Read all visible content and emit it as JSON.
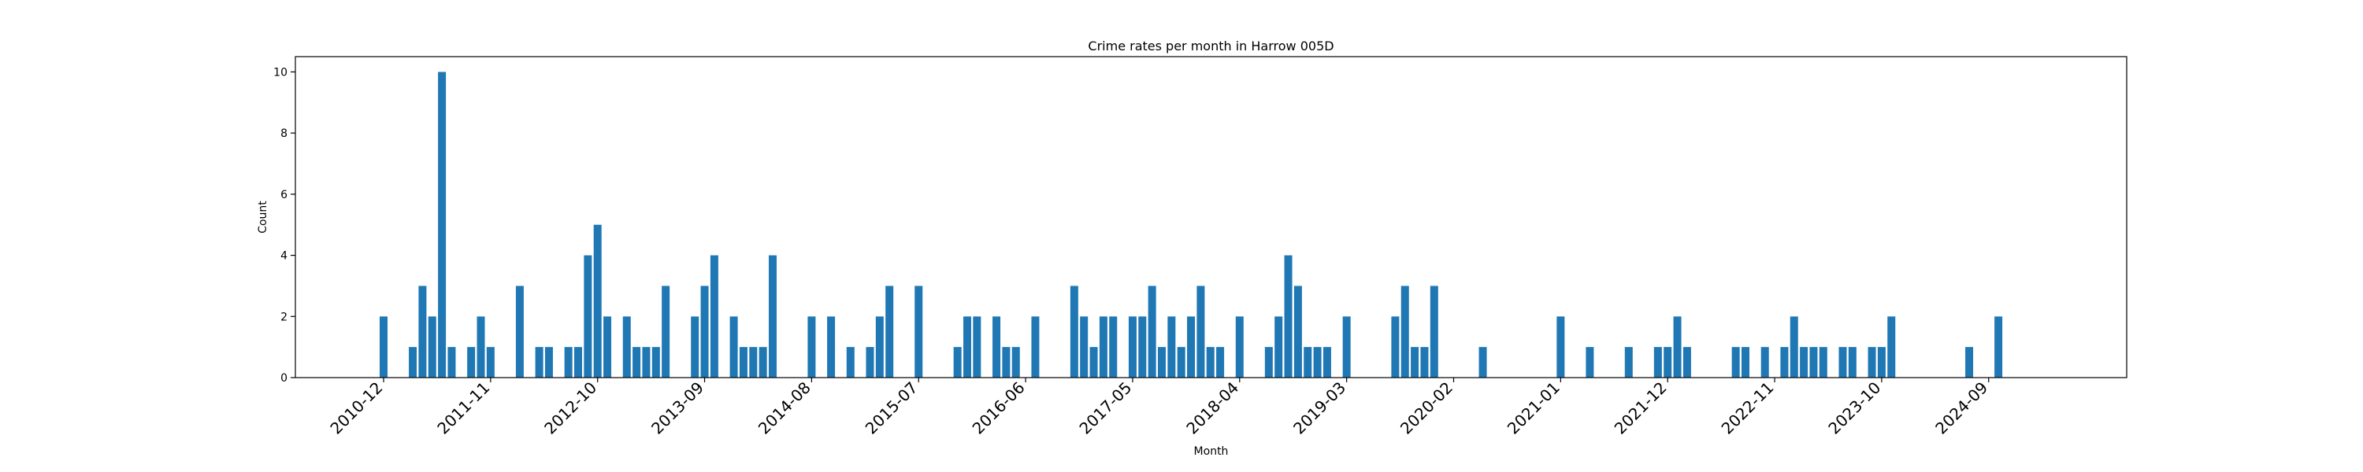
{
  "chart_data": {
    "type": "bar",
    "title": "Crime rates per month in Harrow 005D",
    "xlabel": "Month",
    "ylabel": "Count",
    "ylim": [
      0,
      10.5
    ],
    "y_ticks": [
      0,
      2,
      4,
      6,
      8,
      10
    ],
    "x_ticks": [
      "2010-12",
      "2011-11",
      "2012-10",
      "2013-09",
      "2014-08",
      "2015-07",
      "2016-06",
      "2017-05",
      "2018-04",
      "2019-03",
      "2020-02",
      "2021-01",
      "2021-12",
      "2022-11",
      "2023-10",
      "2024-09"
    ],
    "grid": false,
    "bar_color": "#1f77b4",
    "series": [
      {
        "x": [
          "2010-12",
          "2011-03",
          "2011-04",
          "2011-05",
          "2011-06",
          "2011-07",
          "2011-09",
          "2011-10",
          "2011-11",
          "2012-02",
          "2012-04",
          "2012-05",
          "2012-07",
          "2012-08",
          "2012-09",
          "2012-10",
          "2012-11",
          "2013-01",
          "2013-02",
          "2013-03",
          "2013-04",
          "2013-05",
          "2013-08",
          "2013-09",
          "2013-10",
          "2013-12",
          "2014-01",
          "2014-02",
          "2014-03",
          "2014-04",
          "2014-08",
          "2014-10",
          "2014-12",
          "2015-02",
          "2015-03",
          "2015-04",
          "2015-07",
          "2015-11",
          "2015-12",
          "2016-01",
          "2016-03",
          "2016-04",
          "2016-05",
          "2016-07",
          "2016-11",
          "2016-12",
          "2017-01",
          "2017-02",
          "2017-03",
          "2017-05",
          "2017-06",
          "2017-07",
          "2017-08",
          "2017-09",
          "2017-10",
          "2017-11",
          "2017-12",
          "2018-01",
          "2018-02",
          "2018-04",
          "2018-07",
          "2018-08",
          "2018-09",
          "2018-10",
          "2018-11",
          "2018-12",
          "2019-01",
          "2019-03",
          "2019-08",
          "2019-09",
          "2019-10",
          "2019-11",
          "2019-12",
          "2020-05",
          "2021-01",
          "2021-04",
          "2021-08",
          "2021-11",
          "2021-12",
          "2022-01",
          "2022-02",
          "2022-07",
          "2022-08",
          "2022-10",
          "2022-12",
          "2023-01",
          "2023-02",
          "2023-03",
          "2023-04",
          "2023-06",
          "2023-07",
          "2023-09",
          "2023-10",
          "2023-11",
          "2024-07",
          "2024-10"
        ],
        "values": [
          2,
          1,
          3,
          2,
          10,
          1,
          1,
          2,
          1,
          3,
          1,
          1,
          1,
          1,
          4,
          5,
          2,
          2,
          1,
          1,
          1,
          3,
          2,
          3,
          4,
          2,
          1,
          1,
          1,
          4,
          2,
          2,
          1,
          1,
          2,
          3,
          3,
          1,
          2,
          2,
          2,
          1,
          1,
          2,
          3,
          2,
          1,
          2,
          2,
          2,
          2,
          3,
          1,
          2,
          1,
          2,
          3,
          1,
          1,
          2,
          1,
          2,
          4,
          3,
          1,
          1,
          1,
          2,
          2,
          3,
          1,
          1,
          3,
          1,
          2,
          1,
          1,
          1,
          1,
          2,
          1,
          1,
          1,
          1,
          1,
          2,
          1,
          1,
          1,
          1,
          1,
          1,
          1,
          2,
          1,
          2
        ]
      }
    ]
  }
}
